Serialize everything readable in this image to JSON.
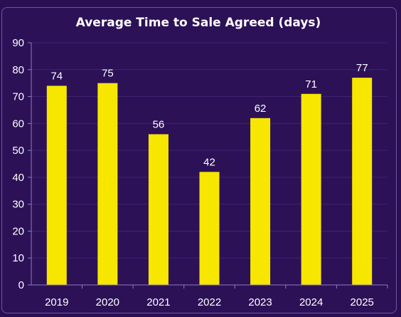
{
  "colors": {
    "background": "#2c1157",
    "bar": "#f7e600",
    "grid": "#3d2470",
    "axis": "#8e7cc0",
    "text": "#ffffff"
  },
  "chart_data": {
    "type": "bar",
    "title": "Average Time to Sale Agreed (days)",
    "xlabel": "",
    "ylabel": "",
    "categories": [
      "2019",
      "2020",
      "2021",
      "2022",
      "2023",
      "2024",
      "2025"
    ],
    "values": [
      74,
      75,
      56,
      42,
      62,
      71,
      77
    ],
    "data_labels": [
      "74",
      "75",
      "56",
      "42",
      "62",
      "71",
      "77"
    ],
    "ylim": [
      0,
      90
    ],
    "yticks": [
      0,
      10,
      20,
      30,
      40,
      50,
      60,
      70,
      80,
      90
    ],
    "ytick_labels": [
      "0",
      "10",
      "20",
      "30",
      "40",
      "50",
      "60",
      "70",
      "80",
      "90"
    ],
    "grid": true,
    "legend": "none"
  }
}
